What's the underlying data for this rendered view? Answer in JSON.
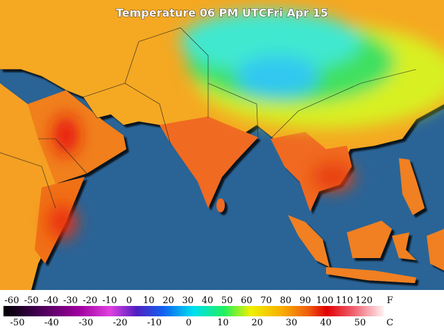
{
  "title": "Temperature 06 PM UTCFri Apr 15",
  "legend": {
    "fahrenheit_ticks": [
      -60,
      -50,
      -40,
      -30,
      -20,
      -10,
      0,
      10,
      20,
      30,
      40,
      50,
      60,
      70,
      80,
      90,
      100,
      110,
      120
    ],
    "fahrenheit_unit": "F",
    "celsius_ticks": [
      -50,
      -40,
      -30,
      -20,
      -10,
      0,
      10,
      20,
      30,
      40,
      50
    ],
    "celsius_unit": "C"
  }
}
